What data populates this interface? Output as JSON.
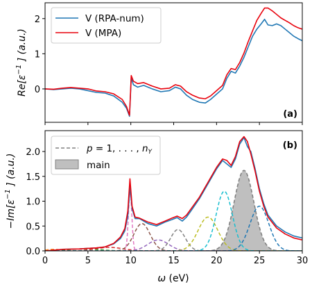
{
  "chart_data": [
    {
      "panel_tag": "(a)",
      "type": "line",
      "ylabel": "Re[ε⁻¹] (a.u.)",
      "xlim": [
        0,
        30
      ],
      "ylim": [
        -0.95,
        2.45
      ],
      "xticks": [
        0,
        5,
        10,
        15,
        20,
        25,
        30
      ],
      "yticks": [
        0,
        1,
        2
      ],
      "legend_position": "top-left",
      "series": [
        {
          "name": "V (RPA-num)",
          "color": "#1f77b4",
          "x": [
            0,
            1,
            2,
            3,
            4,
            5,
            6,
            7,
            8,
            9,
            9.5,
            9.85,
            10.05,
            10.3,
            10.8,
            11.5,
            12.5,
            13.5,
            14.5,
            15.2,
            15.8,
            16.5,
            17.2,
            18,
            18.7,
            19.3,
            20,
            20.7,
            21.2,
            21.7,
            22.2,
            22.7,
            23.2,
            23.7,
            24.2,
            24.7,
            25.2,
            25.6,
            26,
            26.5,
            27,
            27.5,
            28,
            28.5,
            29,
            29.5,
            30
          ],
          "y": [
            0.0,
            -0.02,
            0.0,
            0.02,
            0.0,
            -0.05,
            -0.1,
            -0.12,
            -0.2,
            -0.38,
            -0.55,
            -0.78,
            0.32,
            0.12,
            0.05,
            0.1,
            0.0,
            -0.08,
            -0.05,
            0.05,
            0.0,
            -0.18,
            -0.3,
            -0.38,
            -0.4,
            -0.3,
            -0.15,
            0.0,
            0.3,
            0.5,
            0.45,
            0.65,
            0.9,
            1.2,
            1.5,
            1.7,
            1.85,
            1.98,
            1.82,
            1.8,
            1.85,
            1.8,
            1.7,
            1.6,
            1.5,
            1.43,
            1.37
          ]
        },
        {
          "name": "V (MPA)",
          "color": "#e8000b",
          "x": [
            0,
            1,
            2,
            3,
            4,
            5,
            6,
            7,
            8,
            9,
            9.5,
            9.85,
            10.05,
            10.3,
            10.8,
            11.5,
            12.5,
            13.5,
            14.5,
            15.2,
            15.8,
            16.5,
            17.2,
            18,
            18.7,
            19.3,
            20,
            20.7,
            21.2,
            21.7,
            22.2,
            22.7,
            23.2,
            23.7,
            24.2,
            24.7,
            25.2,
            25.6,
            26,
            26.5,
            27,
            27.5,
            28,
            28.5,
            29,
            29.5,
            30
          ],
          "y": [
            0.0,
            -0.01,
            0.02,
            0.04,
            0.02,
            0.0,
            -0.06,
            -0.08,
            -0.14,
            -0.3,
            -0.5,
            -0.75,
            0.38,
            0.22,
            0.15,
            0.18,
            0.08,
            0.0,
            0.02,
            0.12,
            0.08,
            -0.08,
            -0.18,
            -0.26,
            -0.28,
            -0.2,
            -0.05,
            0.1,
            0.4,
            0.58,
            0.55,
            0.75,
            1.02,
            1.35,
            1.65,
            1.95,
            2.15,
            2.3,
            2.3,
            2.22,
            2.12,
            2.02,
            1.95,
            1.88,
            1.8,
            1.74,
            1.7
          ]
        }
      ]
    },
    {
      "panel_tag": "(b)",
      "type": "line",
      "xlabel": "ω (eV)",
      "ylabel": "−Im[ε⁻¹] (a.u.)",
      "xlim": [
        0,
        30
      ],
      "ylim": [
        0,
        2.42
      ],
      "xticks": [
        0,
        5,
        10,
        15,
        20,
        25,
        30
      ],
      "yticks": [
        0.0,
        0.5,
        1.0,
        1.5,
        2.0
      ],
      "legend_position": "top-left",
      "legend": [
        {
          "label": "p = 1, . . . , n_Y",
          "style": "dashed",
          "color": "#808080"
        },
        {
          "label": "main",
          "style": "patch",
          "color": "#bfbfbf"
        }
      ],
      "series": [
        {
          "name": "V (RPA-num)",
          "color": "#1f77b4",
          "x": [
            0,
            2,
            4,
            6,
            7,
            8,
            8.8,
            9.3,
            9.65,
            9.9,
            10.15,
            10.5,
            11,
            12,
            13,
            14,
            14.8,
            15.4,
            16,
            16.5,
            17,
            18,
            19,
            20,
            20.7,
            21.2,
            21.7,
            22.2,
            22.7,
            23.2,
            23.6,
            24,
            24.5,
            25,
            25.5,
            26,
            27,
            28,
            29,
            30
          ],
          "y": [
            0.0,
            0.03,
            0.04,
            0.06,
            0.08,
            0.14,
            0.25,
            0.4,
            0.7,
            1.3,
            0.85,
            0.65,
            0.65,
            0.55,
            0.5,
            0.58,
            0.63,
            0.67,
            0.6,
            0.68,
            0.8,
            1.05,
            1.35,
            1.65,
            1.82,
            1.75,
            1.68,
            1.85,
            2.15,
            2.28,
            2.1,
            2.0,
            1.65,
            1.25,
            0.95,
            0.72,
            0.5,
            0.38,
            0.3,
            0.26
          ]
        },
        {
          "name": "V (MPA)",
          "color": "#e8000b",
          "x": [
            0,
            2,
            4,
            6,
            7,
            8,
            8.8,
            9.3,
            9.65,
            9.9,
            10.15,
            10.5,
            11,
            12,
            13,
            14,
            14.8,
            15.4,
            16,
            16.5,
            17,
            18,
            19,
            20,
            20.7,
            21.2,
            21.7,
            22.2,
            22.7,
            23.2,
            23.6,
            24,
            24.5,
            25,
            25.5,
            26,
            27,
            28,
            29,
            30
          ],
          "y": [
            0.0,
            0.03,
            0.04,
            0.06,
            0.08,
            0.15,
            0.28,
            0.45,
            0.8,
            1.45,
            0.9,
            0.68,
            0.66,
            0.58,
            0.53,
            0.6,
            0.66,
            0.7,
            0.65,
            0.72,
            0.84,
            1.08,
            1.38,
            1.68,
            1.85,
            1.82,
            1.72,
            1.9,
            2.2,
            2.3,
            2.2,
            1.95,
            1.6,
            1.2,
            0.9,
            0.68,
            0.46,
            0.34,
            0.26,
            0.22
          ]
        },
        {
          "name": "mode-orange",
          "color": "#ff7f0e",
          "dashed": true,
          "center": 1.0,
          "width": 0.9,
          "height": 0.03
        },
        {
          "name": "mode-green",
          "color": "#2ca02c",
          "dashed": true,
          "center": 4.5,
          "width": 1.8,
          "height": 0.04
        },
        {
          "name": "mode-red",
          "color": "#d62728",
          "dashed": true,
          "center": 7.5,
          "width": 1.6,
          "height": 0.07
        },
        {
          "name": "mode-pink",
          "color": "#e377c2",
          "dashed": true,
          "center": 9.92,
          "width": 0.2,
          "height": 1.2
        },
        {
          "name": "mode-brown",
          "color": "#8c564b",
          "dashed": true,
          "center": 11.3,
          "width": 0.95,
          "height": 0.55
        },
        {
          "name": "mode-purple",
          "color": "#9467bd",
          "dashed": true,
          "center": 13.2,
          "width": 1.2,
          "height": 0.22
        },
        {
          "name": "mode-grey",
          "color": "#7f7f7f",
          "dashed": true,
          "center": 15.5,
          "width": 0.85,
          "height": 0.43
        },
        {
          "name": "mode-olive",
          "color": "#bcbd22",
          "dashed": true,
          "center": 19.0,
          "width": 1.15,
          "height": 0.68
        },
        {
          "name": "mode-cyan",
          "color": "#17becf",
          "dashed": true,
          "center": 20.9,
          "width": 0.95,
          "height": 1.2
        },
        {
          "name": "mode-blue",
          "color": "#1f77b4",
          "dashed": true,
          "center": 25.0,
          "width": 1.1,
          "height": 0.9
        }
      ],
      "main_mode": {
        "color": "#bfbfbf",
        "edge": "#808080",
        "center": 23.2,
        "width": 1.15,
        "height": 1.62
      }
    }
  ]
}
